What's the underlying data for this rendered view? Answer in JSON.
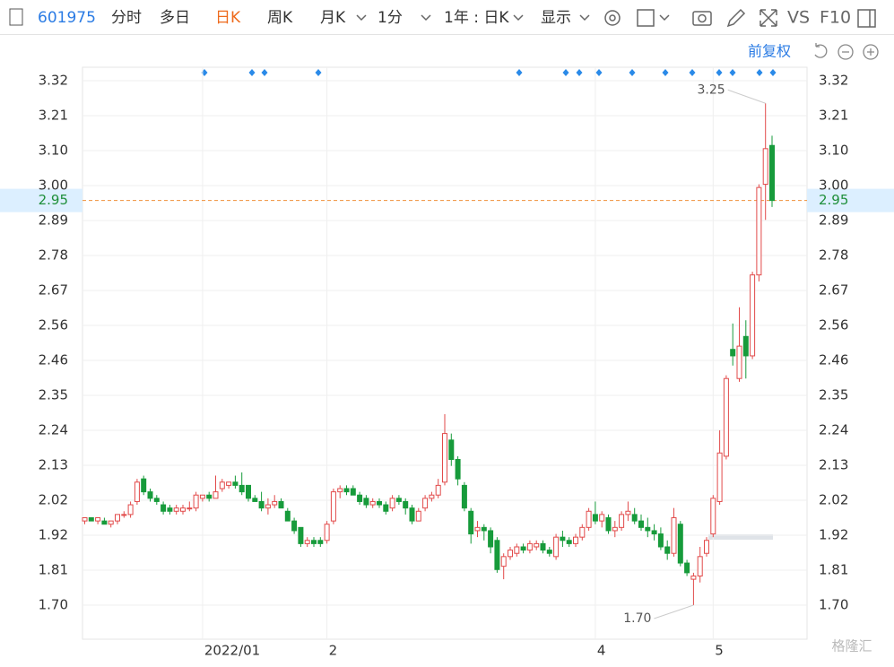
{
  "toolbar": {
    "code": "601975",
    "tabs": [
      "分时",
      "多日",
      "日K",
      "周K",
      "月K",
      "1分",
      "1年 : 日K",
      "显示"
    ],
    "vs": "VS",
    "f10": "F10"
  },
  "adjust": "前复权",
  "watermark": "格隆汇",
  "chart_data": {
    "type": "candlestick",
    "up_color": "#e24a4a",
    "down_color": "#179b3b",
    "categories": [
      null,
      null,
      null,
      null,
      null,
      null,
      null,
      null,
      null,
      null,
      null,
      null,
      null,
      null,
      null,
      null,
      null,
      null,
      "2022/01",
      null,
      null,
      null,
      null,
      null,
      null,
      null,
      null,
      null,
      null,
      null,
      null,
      null,
      null,
      null,
      null,
      null,
      null,
      "2",
      null,
      null,
      null,
      null,
      null,
      null,
      null,
      null,
      null,
      null,
      null,
      null,
      null,
      null,
      null,
      null,
      null,
      null,
      null,
      null,
      null,
      null,
      null,
      null,
      null,
      null,
      null,
      null,
      null,
      null,
      null,
      null,
      null,
      null,
      null,
      null,
      null,
      null,
      null,
      null,
      "4",
      null,
      null,
      null,
      null,
      null,
      null,
      null,
      null,
      null,
      null,
      null,
      null,
      null,
      null,
      null,
      null,
      null,
      "5",
      null,
      null,
      null,
      null,
      null,
      null,
      null,
      null,
      null
    ],
    "open": [
      1.96,
      1.97,
      1.96,
      1.96,
      1.95,
      1.96,
      1.98,
      1.98,
      2.02,
      2.09,
      2.05,
      2.03,
      2.01,
      2.0,
      1.99,
      1.99,
      2.0,
      2.0,
      2.03,
      2.04,
      2.03,
      2.06,
      2.07,
      2.08,
      2.07,
      2.07,
      2.03,
      2.02,
      2.0,
      2.01,
      2.02,
      1.99,
      1.96,
      1.94,
      1.89,
      1.9,
      1.9,
      1.9,
      1.96,
      2.05,
      2.06,
      2.06,
      2.04,
      2.03,
      2.01,
      2.02,
      2.01,
      2.0,
      2.03,
      2.02,
      2.0,
      1.96,
      2.0,
      2.03,
      2.04,
      2.08,
      2.21,
      2.15,
      2.07,
      1.99,
      1.93,
      1.94,
      1.93,
      1.9,
      1.82,
      1.85,
      1.86,
      1.88,
      1.87,
      1.88,
      1.89,
      1.87,
      1.85,
      1.91,
      1.9,
      1.89,
      1.91,
      1.94,
      1.98,
      1.96,
      1.97,
      1.93,
      1.94,
      1.98,
      1.98,
      1.96,
      1.94,
      1.93,
      1.92,
      1.88,
      1.86,
      1.95,
      1.83,
      1.78,
      1.79,
      1.86,
      1.92,
      2.02,
      2.16,
      2.49,
      2.4,
      2.53,
      2.47,
      2.72,
      3.0,
      3.12
    ],
    "high": [
      1.97,
      1.97,
      1.97,
      1.97,
      1.96,
      1.98,
      1.99,
      2.02,
      2.09,
      2.1,
      2.06,
      2.04,
      2.02,
      2.01,
      2.01,
      2.01,
      2.02,
      2.05,
      2.04,
      2.05,
      2.1,
      2.09,
      2.08,
      2.1,
      2.11,
      2.07,
      2.04,
      2.05,
      2.03,
      2.04,
      2.03,
      2.0,
      1.97,
      1.94,
      1.91,
      1.91,
      1.91,
      1.96,
      2.06,
      2.07,
      2.07,
      2.07,
      2.05,
      2.04,
      2.03,
      2.03,
      2.02,
      2.04,
      2.04,
      2.03,
      2.01,
      2.0,
      2.04,
      2.05,
      2.09,
      2.29,
      2.23,
      2.16,
      2.08,
      2.0,
      1.96,
      1.95,
      1.94,
      1.91,
      1.86,
      1.88,
      1.89,
      1.89,
      1.9,
      1.9,
      1.9,
      1.88,
      1.92,
      1.93,
      1.91,
      1.92,
      1.95,
      2.0,
      2.02,
      1.99,
      1.98,
      1.96,
      1.99,
      2.02,
      2.0,
      1.98,
      1.97,
      1.95,
      1.94,
      1.9,
      2.0,
      1.96,
      1.84,
      1.8,
      1.88,
      1.91,
      2.04,
      2.24,
      2.41,
      2.57,
      2.62,
      2.58,
      2.73,
      3.0,
      3.25,
      3.15
    ],
    "low": [
      1.95,
      1.96,
      1.95,
      1.95,
      1.94,
      1.95,
      1.97,
      1.97,
      2.01,
      2.04,
      2.02,
      2.01,
      1.98,
      1.98,
      1.98,
      1.98,
      1.99,
      1.99,
      2.02,
      2.02,
      2.03,
      2.05,
      2.06,
      2.06,
      2.04,
      2.02,
      2.02,
      1.99,
      1.98,
      2.0,
      2.0,
      1.96,
      1.92,
      1.88,
      1.88,
      1.88,
      1.88,
      1.89,
      1.95,
      2.03,
      2.04,
      2.04,
      2.01,
      2.0,
      2.0,
      2.0,
      1.98,
      1.99,
      2.01,
      1.98,
      1.95,
      1.96,
      1.99,
      2.02,
      2.03,
      2.07,
      2.13,
      2.07,
      1.99,
      1.89,
      1.91,
      1.9,
      1.86,
      1.8,
      1.78,
      1.84,
      1.85,
      1.86,
      1.86,
      1.87,
      1.86,
      1.85,
      1.84,
      1.88,
      1.88,
      1.88,
      1.9,
      1.93,
      1.95,
      1.94,
      1.92,
      1.91,
      1.93,
      1.96,
      1.95,
      1.93,
      1.91,
      1.9,
      1.87,
      1.84,
      1.85,
      1.82,
      1.79,
      1.7,
      1.77,
      1.85,
      1.91,
      2.01,
      2.15,
      2.44,
      2.39,
      2.4,
      2.46,
      2.7,
      2.89,
      2.93
    ],
    "close": [
      1.97,
      1.96,
      1.97,
      1.95,
      1.96,
      1.98,
      1.98,
      2.01,
      2.08,
      2.05,
      2.03,
      2.02,
      1.99,
      1.99,
      2.0,
      2.0,
      2.0,
      2.04,
      2.04,
      2.03,
      2.05,
      2.08,
      2.08,
      2.07,
      2.05,
      2.03,
      2.02,
      2.0,
      2.01,
      2.02,
      2.0,
      1.96,
      1.93,
      1.89,
      1.9,
      1.89,
      1.89,
      1.95,
      2.05,
      2.06,
      2.05,
      2.04,
      2.02,
      2.01,
      2.02,
      2.01,
      1.99,
      2.03,
      2.02,
      2.0,
      1.96,
      1.99,
      2.03,
      2.04,
      2.07,
      2.23,
      2.15,
      2.09,
      2.0,
      1.92,
      1.94,
      1.93,
      1.88,
      1.81,
      1.85,
      1.87,
      1.88,
      1.87,
      1.89,
      1.89,
      1.87,
      1.86,
      1.91,
      1.9,
      1.89,
      1.91,
      1.94,
      1.99,
      1.96,
      1.98,
      1.93,
      1.94,
      1.98,
      1.99,
      1.96,
      1.94,
      1.93,
      1.92,
      1.88,
      1.86,
      1.97,
      1.83,
      1.8,
      1.79,
      1.85,
      1.9,
      2.03,
      2.17,
      2.4,
      2.47,
      2.5,
      2.47,
      2.72,
      2.99,
      3.11,
      2.95
    ],
    "current_price": 2.95,
    "annotations": {
      "max": {
        "value": 3.25,
        "label": "3.25"
      },
      "min": {
        "value": 1.7,
        "label": "1.70"
      }
    },
    "ylim": [
      1.7,
      3.32
    ],
    "yticks": [
      {
        "value": 1.7,
        "label": "1.70"
      },
      {
        "value": 1.808,
        "label": "1.81"
      },
      {
        "value": 1.916,
        "label": "1.92"
      },
      {
        "value": 2.024,
        "label": "2.02"
      },
      {
        "value": 2.132,
        "label": "2.13"
      },
      {
        "value": 2.24,
        "label": "2.24"
      },
      {
        "value": 2.348,
        "label": "2.35"
      },
      {
        "value": 2.456,
        "label": "2.46"
      },
      {
        "value": 2.564,
        "label": "2.56"
      },
      {
        "value": 2.672,
        "label": "2.67"
      },
      {
        "value": 2.78,
        "label": "2.78"
      },
      {
        "value": 2.888,
        "label": "2.89"
      },
      {
        "value": 2.996,
        "label": "3.00"
      },
      {
        "value": 3.104,
        "label": "3.10"
      },
      {
        "value": 3.212,
        "label": "3.21"
      },
      {
        "value": 3.32,
        "label": "3.32"
      }
    ],
    "grid": true
  }
}
